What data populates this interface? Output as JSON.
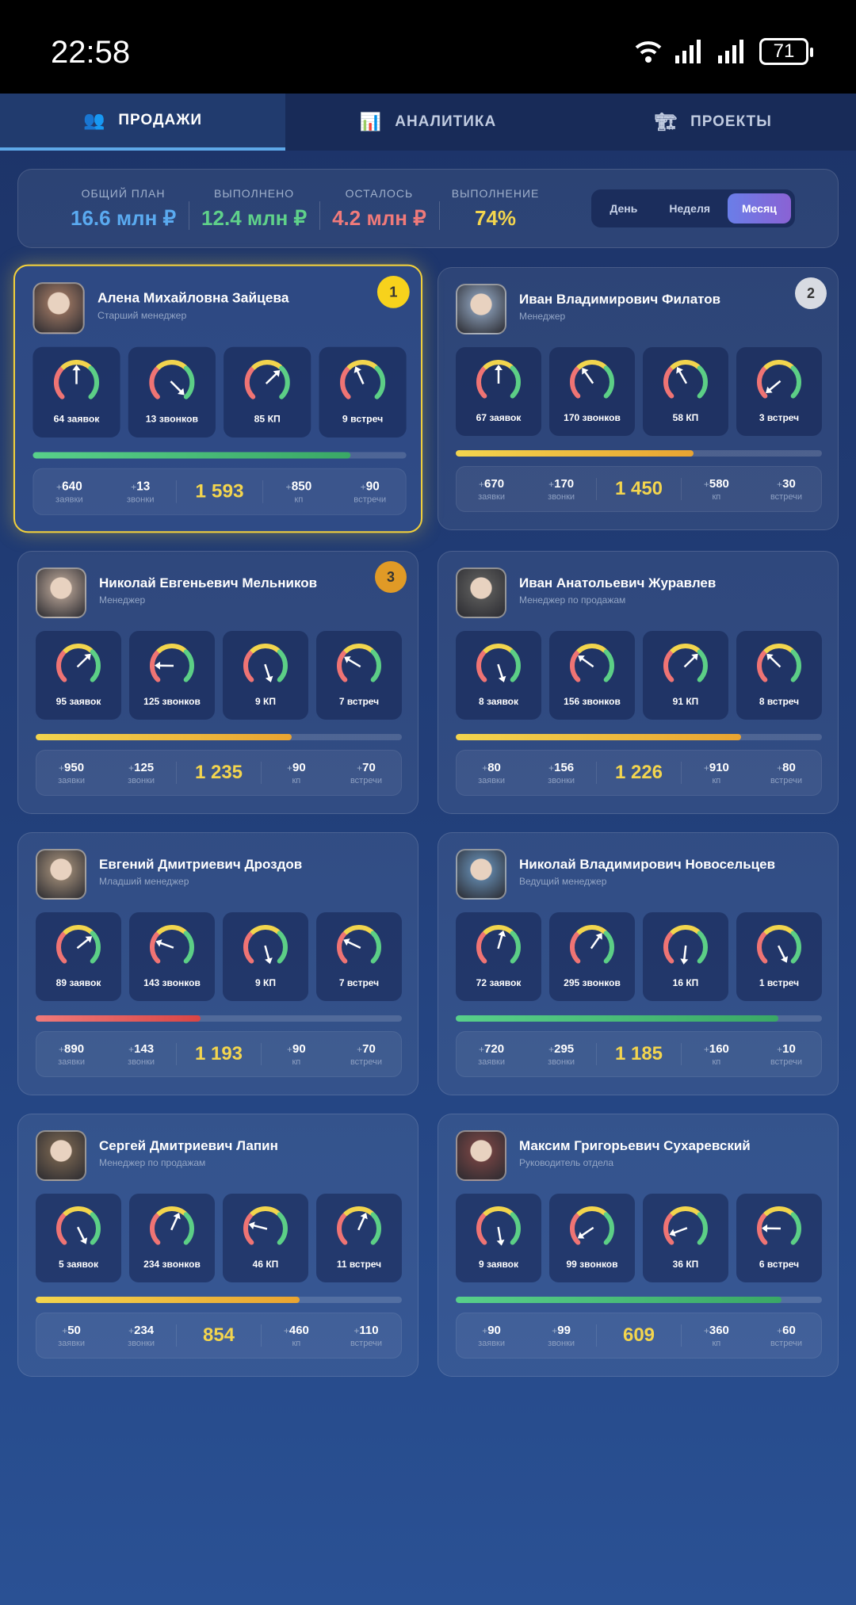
{
  "status": {
    "time": "22:58",
    "battery": "71"
  },
  "tabs": [
    {
      "label": "ПРОДАЖИ",
      "icon": "👥"
    },
    {
      "label": "АНАЛИТИКА",
      "icon": "📊"
    },
    {
      "label": "ПРОЕКТЫ",
      "icon": "🏗"
    }
  ],
  "summary": {
    "items": [
      {
        "label": "ОБЩИЙ ПЛАН",
        "value": "16.6 млн ₽",
        "color": "#5aaaf0"
      },
      {
        "label": "ВЫПОЛНЕНО",
        "value": "12.4 млн ₽",
        "color": "#5fd18a"
      },
      {
        "label": "ОСТАЛОСЬ",
        "value": "4.2 млн ₽",
        "color": "#f07a7a"
      },
      {
        "label": "ВЫПОЛНЕНИЕ",
        "value": "74%",
        "color": "#f3d54e"
      }
    ],
    "periods": [
      "День",
      "Неделя",
      "Месяц"
    ],
    "active_period": 2
  },
  "stat_labels": [
    "заявки",
    "звонки",
    "кп",
    "встречи"
  ],
  "managers": [
    {
      "name": "Алена Михайловна Зайцева",
      "role": "Старший менеджер",
      "rank": "1",
      "avatar_color": "#8a6a5a",
      "gauges": [
        {
          "label": "64 заявок",
          "level": 0.5
        },
        {
          "label": "13 звонков",
          "level": 1.0
        },
        {
          "label": "85 КП",
          "level": 0.67
        },
        {
          "label": "9 встреч",
          "level": 0.41
        }
      ],
      "progress": 0.85,
      "bar": "green",
      "stats": [
        "640",
        "13",
        "850",
        "90"
      ],
      "total": "1 593"
    },
    {
      "name": "Иван Владимирович Филатов",
      "role": "Менеджер",
      "rank": "2",
      "avatar_color": "#7a8aa0",
      "gauges": [
        {
          "label": "67 заявок",
          "level": 0.5
        },
        {
          "label": "170 звонков",
          "level": 0.37
        },
        {
          "label": "58 КП",
          "level": 0.39
        },
        {
          "label": "3 встреч",
          "level": 0.02
        }
      ],
      "progress": 0.65,
      "bar": "orange",
      "stats": [
        "670",
        "170",
        "580",
        "30"
      ],
      "total": "1 450"
    },
    {
      "name": "Николай Евгеньевич Мельников",
      "role": "Менеджер",
      "rank": "3",
      "avatar_color": "#9a8a80",
      "gauges": [
        {
          "label": "95 заявок",
          "level": 0.67
        },
        {
          "label": "125 звонков",
          "level": 0.17
        },
        {
          "label": "9 КП",
          "level": 1.1
        },
        {
          "label": "7 встреч",
          "level": 0.28
        }
      ],
      "progress": 0.7,
      "bar": "orange",
      "stats": [
        "950",
        "125",
        "90",
        "70"
      ],
      "total": "1 235"
    },
    {
      "name": "Иван Анатольевич Журавлев",
      "role": "Менеджер по продажам",
      "rank": "",
      "avatar_color": "#555",
      "gauges": [
        {
          "label": "8 заявок",
          "level": 1.1
        },
        {
          "label": "156 звонков",
          "level": 0.3
        },
        {
          "label": "91 КП",
          "level": 0.67
        },
        {
          "label": "8 встреч",
          "level": 0.33
        }
      ],
      "progress": 0.78,
      "bar": "orange",
      "stats": [
        "80",
        "156",
        "910",
        "80"
      ],
      "total": "1 226"
    },
    {
      "name": "Евгений Дмитриевич Дроздов",
      "role": "Младший менеджер",
      "rank": "",
      "avatar_color": "#8a7a6a",
      "gauges": [
        {
          "label": "89 заявок",
          "level": 0.69
        },
        {
          "label": "143 звонков",
          "level": 0.24
        },
        {
          "label": "9 КП",
          "level": 1.11
        },
        {
          "label": "7 встреч",
          "level": 0.26
        }
      ],
      "progress": 0.45,
      "bar": "red",
      "stats": [
        "890",
        "143",
        "90",
        "70"
      ],
      "total": "1 193"
    },
    {
      "name": "Николай Владимирович Новосельцев",
      "role": "Ведущий менеджер",
      "rank": "",
      "avatar_color": "#5a7a9a",
      "gauges": [
        {
          "label": "72 заявок",
          "level": 0.56
        },
        {
          "label": "295 звонков",
          "level": 0.63
        },
        {
          "label": "16 КП",
          "level": 1.19
        },
        {
          "label": "1 встреч",
          "level": 1.07
        }
      ],
      "progress": 0.88,
      "bar": "green",
      "stats": [
        "720",
        "295",
        "160",
        "10"
      ],
      "total": "1 185"
    },
    {
      "name": "Сергей Дмитриевич Лапин",
      "role": "Менеджер по продажам",
      "rank": "",
      "avatar_color": "#6a5a4a",
      "gauges": [
        {
          "label": "5 заявок",
          "level": 1.07
        },
        {
          "label": "234 звонков",
          "level": 0.59
        },
        {
          "label": "46 КП",
          "level": 0.22
        },
        {
          "label": "11 встреч",
          "level": 0.59
        }
      ],
      "progress": 0.72,
      "bar": "orange",
      "stats": [
        "50",
        "234",
        "460",
        "110"
      ],
      "total": "854"
    },
    {
      "name": "Максим Григорьевич Сухаревский",
      "role": "Руководитель отдела",
      "rank": "",
      "avatar_color": "#6a4040",
      "gauges": [
        {
          "label": "9 заявок",
          "level": 1.13
        },
        {
          "label": "99 звонков",
          "level": 0.04
        },
        {
          "label": "36 КП",
          "level": 0.09
        },
        {
          "label": "6 встреч",
          "level": 0.17
        }
      ],
      "progress": 0.89,
      "bar": "green",
      "stats": [
        "90",
        "99",
        "360",
        "60"
      ],
      "total": "609"
    }
  ],
  "colors": {
    "green": "#4fc77d",
    "orange": "#f0b93a",
    "red": "#e85a5a",
    "rank1": "#f7d21c",
    "rank2": "#d8dbe2",
    "rank3": "#e09a26"
  }
}
